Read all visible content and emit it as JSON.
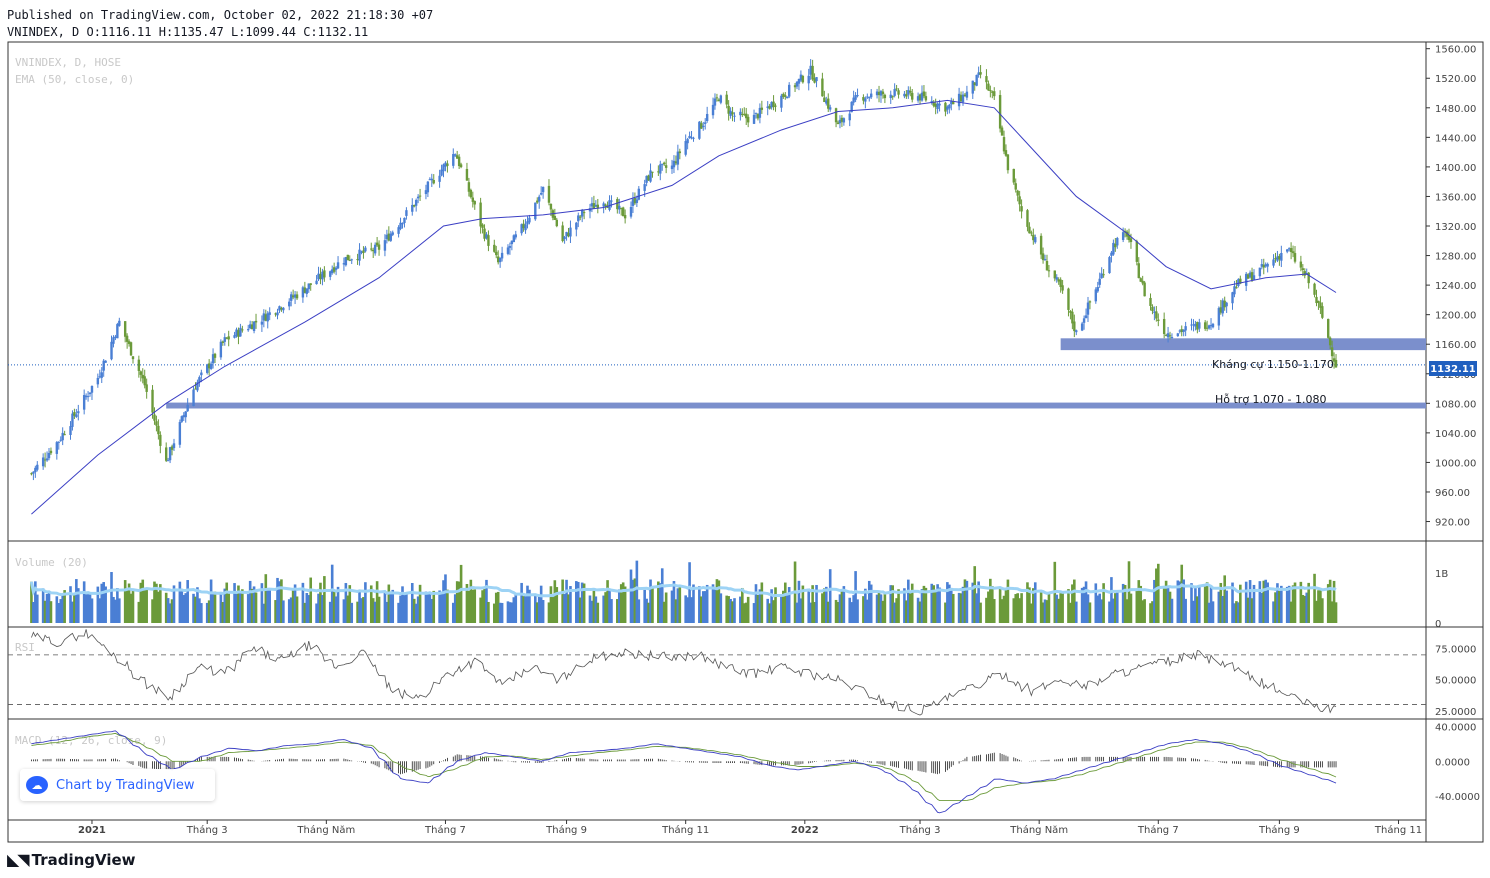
{
  "header": {
    "published": "Published on TradingView.com, October 02, 2022 21:18:30 +07",
    "ohlc": "VNINDEX, D O:1116.11 H:1135.47 L:1099.44 C:1132.11"
  },
  "legend": {
    "symbol": "VNINDEX, D, HOSE",
    "ema": "EMA (50, close, 0)",
    "volume": "Volume (20)",
    "rsi": "RSI",
    "macd": "MACD (12, 26, close, 9)"
  },
  "annotations": {
    "resistance": "Kháng cự 1.150-1.170",
    "support": "Hỗ trợ 1.070 - 1.080",
    "last_price": "1132.11"
  },
  "watermark": "Chart by TradingView",
  "brand": "TradingView",
  "colors": {
    "up": "#4a7fd4",
    "down": "#6b9a3a",
    "ema": "#3b3fc4",
    "zone": "#7b8fcc",
    "vol_ma": "#9dd3f5",
    "price_label": "#1f5fbf"
  },
  "chart_data": [
    {
      "type": "line",
      "title": "VNINDEX, D, HOSE",
      "x_ticks": [
        "2021",
        "Tháng 3",
        "Tháng Năm",
        "Tháng 7",
        "Tháng 9",
        "Tháng 11",
        "2022",
        "Tháng 3",
        "Tháng Năm",
        "Tháng 7",
        "Tháng 9",
        "Tháng 11"
      ],
      "y_ticks": [
        920,
        960,
        1000,
        1040,
        1080,
        1120,
        1160,
        1200,
        1240,
        1280,
        1320,
        1360,
        1400,
        1440,
        1480,
        1520,
        1560
      ],
      "ylim": [
        895,
        1565
      ],
      "grid": false,
      "series": [
        {
          "name": "VNINDEX",
          "x": [
            "2020-12-01",
            "2020-12-15",
            "2021-01-04",
            "2021-01-15",
            "2021-01-28",
            "2021-02-08",
            "2021-02-22",
            "2021-03-10",
            "2021-04-01",
            "2021-04-20",
            "2021-05-10",
            "2021-05-28",
            "2021-06-15",
            "2021-06-30",
            "2021-07-06",
            "2021-07-12",
            "2021-07-20",
            "2021-07-28",
            "2021-08-10",
            "2021-08-20",
            "2021-08-30",
            "2021-09-10",
            "2021-09-20",
            "2021-10-01",
            "2021-10-15",
            "2021-10-25",
            "2021-11-01",
            "2021-11-10",
            "2021-11-18",
            "2021-11-25",
            "2021-12-05",
            "2021-12-20",
            "2022-01-04",
            "2022-01-10",
            "2022-01-18",
            "2022-01-28",
            "2022-02-15",
            "2022-03-01",
            "2022-03-15",
            "2022-03-25",
            "2022-04-01",
            "2022-04-08",
            "2022-04-15",
            "2022-04-22",
            "2022-05-04",
            "2022-05-12",
            "2022-05-20",
            "2022-05-31",
            "2022-06-08",
            "2022-06-15",
            "2022-06-25",
            "2022-07-05",
            "2022-07-15",
            "2022-07-28",
            "2022-08-10",
            "2022-08-25",
            "2022-09-05",
            "2022-09-15",
            "2022-09-22",
            "2022-09-30"
          ],
          "values": [
            985,
            1030,
            1115,
            1190,
            1105,
            1000,
            1100,
            1165,
            1200,
            1235,
            1275,
            1290,
            1350,
            1400,
            1420,
            1375,
            1315,
            1270,
            1320,
            1370,
            1300,
            1340,
            1355,
            1335,
            1395,
            1400,
            1435,
            1460,
            1495,
            1470,
            1465,
            1495,
            1530,
            1500,
            1455,
            1495,
            1500,
            1495,
            1480,
            1500,
            1525,
            1490,
            1400,
            1340,
            1270,
            1235,
            1175,
            1240,
            1295,
            1310,
            1220,
            1175,
            1180,
            1190,
            1240,
            1265,
            1290,
            1250,
            1205,
            1132
          ]
        },
        {
          "name": "EMA (50, close, 0)",
          "x": [
            "2020-12-01",
            "2021-01-04",
            "2021-02-08",
            "2021-03-10",
            "2021-04-20",
            "2021-05-28",
            "2021-06-30",
            "2021-07-20",
            "2021-08-20",
            "2021-09-20",
            "2021-10-25",
            "2021-11-18",
            "2021-12-20",
            "2022-01-18",
            "2022-02-15",
            "2022-03-15",
            "2022-04-08",
            "2022-04-22",
            "2022-05-20",
            "2022-06-15",
            "2022-07-05",
            "2022-07-28",
            "2022-08-25",
            "2022-09-15",
            "2022-09-30"
          ],
          "values": [
            930,
            1010,
            1080,
            1130,
            1190,
            1250,
            1320,
            1330,
            1335,
            1345,
            1375,
            1415,
            1450,
            1475,
            1480,
            1490,
            1480,
            1440,
            1360,
            1310,
            1265,
            1235,
            1250,
            1255,
            1230
          ]
        }
      ],
      "zones": [
        {
          "label": "Kháng cự 1.150-1.170",
          "from": 1152,
          "to": 1168
        },
        {
          "label": "Hỗ trợ 1.070 - 1.080",
          "from": 1073,
          "to": 1081
        }
      ],
      "last_price": 1132.11
    },
    {
      "type": "bar",
      "title": "Volume (20)",
      "y_ticks": [
        "1B",
        "0"
      ],
      "note": "daily volume bars with 20-period moving average"
    },
    {
      "type": "line",
      "title": "RSI",
      "y_ticks": [
        75,
        50,
        25
      ],
      "ylim": [
        20,
        90
      ],
      "series": [
        {
          "name": "RSI",
          "values": [
            85,
            80,
            88,
            70,
            50,
            35,
            60,
            55,
            75,
            65,
            78,
            60,
            72,
            40,
            35,
            55,
            65,
            45,
            60,
            50,
            65,
            72,
            70,
            68,
            70,
            60,
            55,
            60,
            55,
            50,
            40,
            30,
            25,
            35,
            45,
            55,
            40,
            50,
            45,
            55,
            60,
            65,
            70,
            62,
            50,
            40,
            30,
            25
          ]
        }
      ]
    },
    {
      "type": "line",
      "title": "MACD (12, 26, close, 9)",
      "y_ticks": [
        40,
        0,
        -40
      ],
      "ylim": [
        -65,
        45
      ],
      "series": [
        {
          "name": "MACD",
          "values": [
            20,
            25,
            30,
            35,
            10,
            -10,
            5,
            15,
            12,
            18,
            20,
            25,
            15,
            -20,
            -25,
            0,
            10,
            5,
            0,
            10,
            12,
            15,
            20,
            15,
            10,
            5,
            -5,
            -10,
            -5,
            0,
            -10,
            -30,
            -60,
            -40,
            -20,
            -25,
            -20,
            -10,
            0,
            10,
            20,
            25,
            20,
            10,
            -5,
            -15,
            -25
          ]
        },
        {
          "name": "Signal",
          "values": [
            18,
            22,
            28,
            32,
            18,
            0,
            0,
            10,
            12,
            15,
            18,
            22,
            18,
            -5,
            -18,
            -8,
            5,
            6,
            2,
            6,
            10,
            13,
            17,
            16,
            12,
            7,
            0,
            -6,
            -6,
            -2,
            -6,
            -20,
            -45,
            -45,
            -30,
            -25,
            -22,
            -15,
            -5,
            5,
            15,
            22,
            22,
            14,
            2,
            -8,
            -18
          ]
        }
      ]
    }
  ]
}
